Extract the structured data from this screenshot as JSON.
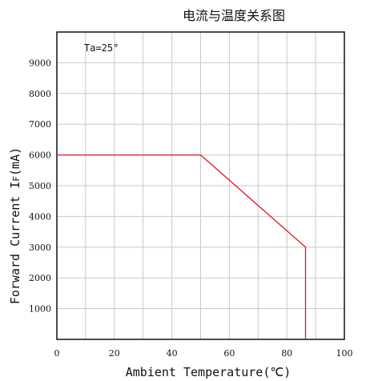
{
  "chart_data": {
    "type": "line",
    "title": "电流与温度关系图",
    "xlabel": "Ambient Temperature(℃)",
    "ylabel": "Forward Current IF(mA)",
    "ylabel_main": "Forward Current I",
    "ylabel_sub": "F",
    "ylabel_unit": "(mA)",
    "annotation": "Ta=25°",
    "xlim": [
      0,
      100
    ],
    "ylim": [
      0,
      10000
    ],
    "x_ticks": [
      0,
      20,
      40,
      60,
      80,
      100
    ],
    "x_tick_labels": [
      "0",
      "20",
      "40",
      "60",
      "80",
      "100"
    ],
    "y_ticks": [
      1000,
      2000,
      3000,
      4000,
      5000,
      6000,
      7000,
      8000,
      9000
    ],
    "y_tick_labels": [
      "1000",
      "2000",
      "3000",
      "4000",
      "5000",
      "6000",
      "7000",
      "8000",
      "9000"
    ],
    "grid": true,
    "line_color": "#e0141e",
    "series": [
      {
        "x": [
          0,
          50,
          86.5,
          86.5
        ],
        "y": [
          6000,
          6000,
          3000,
          0
        ]
      }
    ]
  }
}
